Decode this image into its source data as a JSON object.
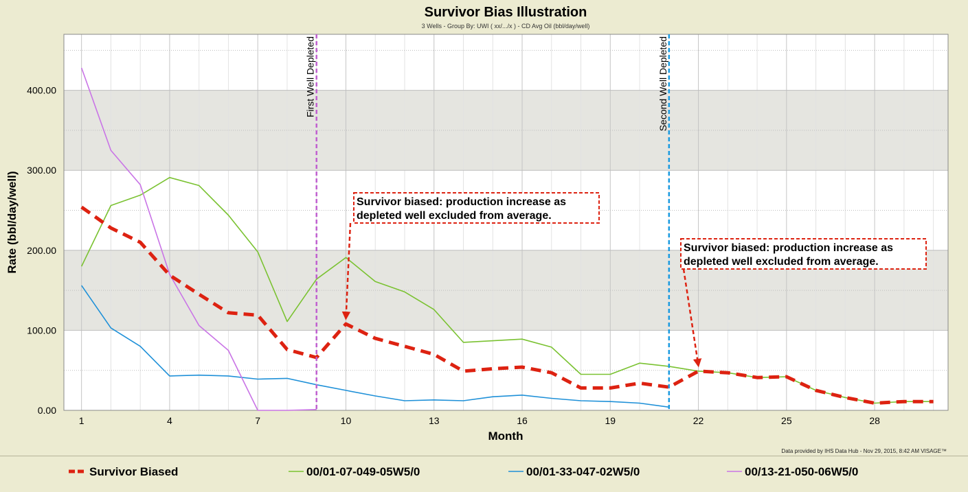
{
  "chart_data": {
    "type": "line",
    "title": "Survivor Bias Illustration",
    "subtitle": "3 Wells - Group By: UWI ( xx/.../x ) - CD Avg Oil (bbl/day/well)",
    "xlabel": "Month",
    "ylabel": "Rate (bbl/day/well)",
    "xlim": [
      0.4,
      30.5
    ],
    "ylim": [
      0,
      470
    ],
    "x_ticks": [
      1,
      4,
      7,
      10,
      13,
      16,
      19,
      22,
      25,
      28
    ],
    "y_ticks": [
      0,
      100,
      200,
      300,
      400
    ],
    "y_tick_labels": [
      "0.00",
      "100.00",
      "200.00",
      "300.00",
      "400.00"
    ],
    "grid": true,
    "shaded_bands": [
      [
        100,
        200
      ],
      [
        300,
        400
      ]
    ],
    "series": [
      {
        "name": "Survivor Biased",
        "color": "#dd2211",
        "style": "dashed-thick",
        "x": [
          1,
          2,
          3,
          4,
          5,
          6,
          7,
          8,
          9,
          10,
          11,
          12,
          13,
          14,
          15,
          16,
          17,
          18,
          19,
          20,
          21,
          22,
          23,
          24,
          25,
          26,
          27,
          28,
          29,
          30
        ],
        "y": [
          254,
          228,
          210,
          169,
          145,
          122,
          119,
          76,
          66,
          108,
          90,
          80,
          70,
          49,
          52,
          54,
          47,
          28,
          28,
          34,
          29,
          49,
          47,
          41,
          42,
          25,
          16,
          9,
          11,
          11
        ]
      },
      {
        "name": "00/01-07-049-05W5/0",
        "color": "#7ac231",
        "style": "solid",
        "x": [
          1,
          2,
          3,
          4,
          5,
          6,
          7,
          8,
          9,
          10,
          11,
          12,
          13,
          14,
          15,
          16,
          17,
          18,
          19,
          20,
          21,
          22,
          23,
          24,
          25,
          26,
          27,
          28,
          29,
          30
        ],
        "y": [
          180,
          256,
          269,
          291,
          281,
          244,
          198,
          111,
          164,
          191,
          161,
          148,
          126,
          85,
          87,
          89,
          79,
          45,
          45,
          59,
          55,
          49,
          47,
          41,
          42,
          25,
          16,
          9,
          11,
          11
        ]
      },
      {
        "name": "00/01-33-047-02W5/0",
        "color": "#1e90d8",
        "style": "solid",
        "x": [
          1,
          2,
          3,
          4,
          5,
          6,
          7,
          8,
          9,
          10,
          11,
          12,
          13,
          14,
          15,
          16,
          17,
          18,
          19,
          20,
          21
        ],
        "y": [
          156,
          103,
          80,
          43,
          44,
          43,
          39,
          40,
          32,
          25,
          18,
          12,
          13,
          12,
          17,
          19,
          15,
          12,
          11,
          9,
          4
        ]
      },
      {
        "name": "00/13-21-050-06W5/0",
        "color": "#c974e6",
        "style": "solid",
        "x": [
          1,
          2,
          3,
          4,
          5,
          6,
          7,
          8,
          9
        ],
        "y": [
          428,
          325,
          282,
          170,
          106,
          75,
          0,
          0,
          1
        ]
      }
    ],
    "vlines": [
      {
        "x": 9,
        "label": "First Well Depleted",
        "color": "#c060d0"
      },
      {
        "x": 21,
        "label": "Second Well Depleted",
        "color": "#1a9ae0"
      }
    ],
    "annotations": [
      {
        "line1": "Survivor biased: production increase as",
        "line2": "depleted well excluded from average.",
        "arrow_to": [
          10,
          108
        ]
      },
      {
        "line1": "Survivor biased: production increase as",
        "line2": "depleted well excluded from average.",
        "arrow_to": [
          22,
          49
        ]
      }
    ],
    "credit": "Data provided by IHS Data Hub - Nov 29, 2015, 8:42 AM VISAGE™"
  }
}
